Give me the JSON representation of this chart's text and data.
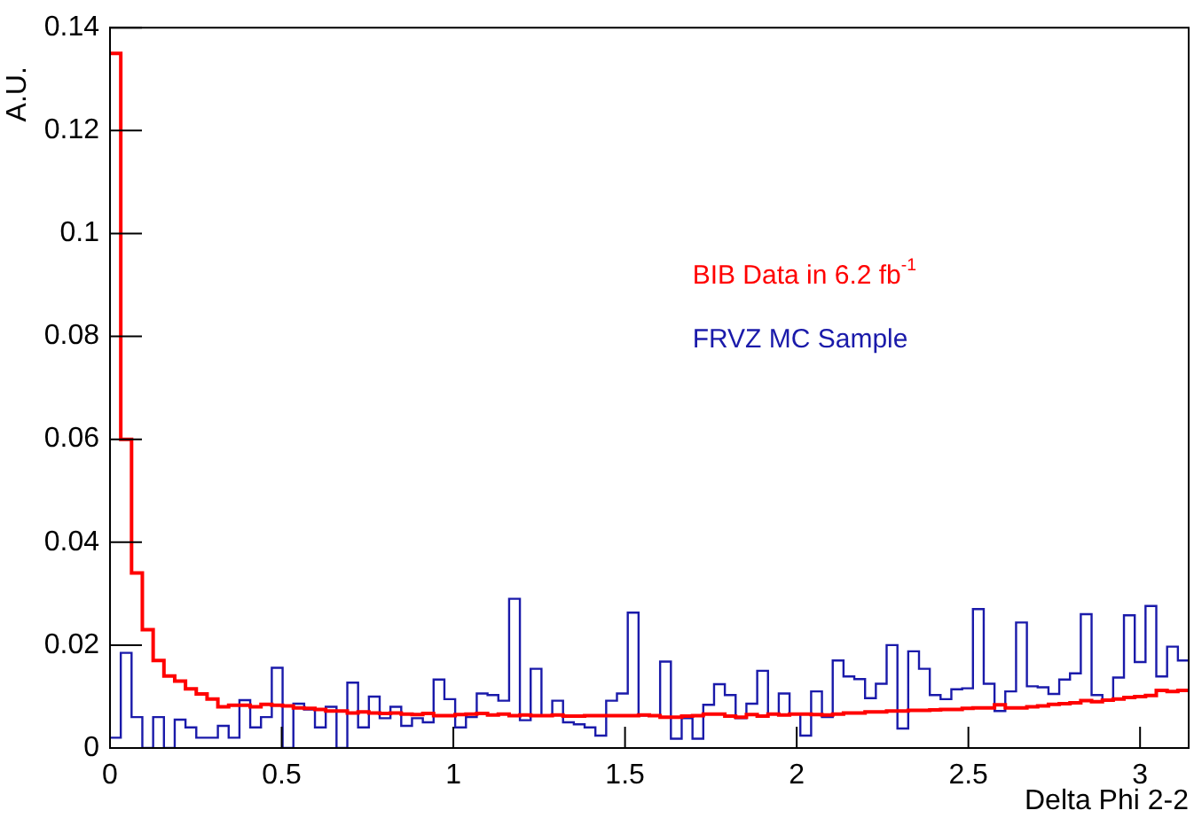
{
  "chart_data": {
    "type": "histogram",
    "xlabel": "Delta Phi 2-2",
    "ylabel": "A.U.",
    "bins": [
      0,
      0.0314,
      0.0628,
      0.0942,
      0.1257,
      0.1571,
      0.1885,
      0.2199,
      0.2513,
      0.2827,
      0.3142,
      0.3456,
      0.377,
      0.4084,
      0.4398,
      0.4712,
      0.5027,
      0.5341,
      0.5655,
      0.5969,
      0.6283,
      0.6597,
      0.6912,
      0.7226,
      0.754,
      0.7854,
      0.8168,
      0.8482,
      0.8796,
      0.9111,
      0.9425,
      0.9739,
      1.0053,
      1.0367,
      1.0681,
      1.0996,
      1.131,
      1.1624,
      1.1938,
      1.2252,
      1.2566,
      1.2881,
      1.3195,
      1.3509,
      1.3823,
      1.4137,
      1.4451,
      1.4765,
      1.508,
      1.5394,
      1.5708,
      1.6022,
      1.6336,
      1.665,
      1.6965,
      1.7279,
      1.7593,
      1.7907,
      1.8221,
      1.8535,
      1.885,
      1.9164,
      1.9478,
      1.9792,
      2.0106,
      2.042,
      2.0735,
      2.1049,
      2.1363,
      2.1677,
      2.1991,
      2.2305,
      2.2619,
      2.2934,
      2.3248,
      2.3562,
      2.3876,
      2.419,
      2.4504,
      2.4819,
      2.5133,
      2.5447,
      2.5761,
      2.6075,
      2.6389,
      2.6704,
      2.7018,
      2.7332,
      2.7646,
      2.796,
      2.8274,
      2.8588,
      2.8903,
      2.9217,
      2.9531,
      2.9845,
      3.0159,
      3.0473,
      3.0788,
      3.1102,
      3.1416
    ],
    "series": [
      {
        "name": "BIB Data in 6.2 fb$^{-1}$",
        "color": "#ff0000",
        "values": [
          0.135,
          0.06,
          0.034,
          0.023,
          0.017,
          0.014,
          0.013,
          0.0115,
          0.0105,
          0.0095,
          0.008,
          0.0083,
          0.0083,
          0.008,
          0.0085,
          0.0083,
          0.0082,
          0.0078,
          0.0077,
          0.0075,
          0.0072,
          0.0072,
          0.0068,
          0.007,
          0.0068,
          0.0067,
          0.0068,
          0.0066,
          0.0065,
          0.0067,
          0.0063,
          0.0063,
          0.0065,
          0.0066,
          0.0067,
          0.0064,
          0.0066,
          0.0063,
          0.0064,
          0.0063,
          0.0063,
          0.0064,
          0.0062,
          0.0062,
          0.0063,
          0.0063,
          0.0063,
          0.0063,
          0.0063,
          0.0064,
          0.0063,
          0.006,
          0.006,
          0.0062,
          0.0063,
          0.0066,
          0.0066,
          0.0062,
          0.006,
          0.0065,
          0.0062,
          0.0066,
          0.0064,
          0.0066,
          0.0066,
          0.0065,
          0.0064,
          0.0066,
          0.0068,
          0.0068,
          0.007,
          0.007,
          0.0072,
          0.0072,
          0.0073,
          0.0073,
          0.0074,
          0.0075,
          0.0075,
          0.0077,
          0.0078,
          0.0078,
          0.0084,
          0.0078,
          0.0078,
          0.008,
          0.0082,
          0.0085,
          0.0086,
          0.0088,
          0.0092,
          0.009,
          0.0093,
          0.0095,
          0.0098,
          0.01,
          0.0102,
          0.0112,
          0.011,
          0.0112
        ]
      },
      {
        "name": "FRVZ MC Sample",
        "color": "#1a1aaa",
        "values": [
          0.002,
          0.0185,
          0.006,
          0,
          0.006,
          0,
          0.0055,
          0.004,
          0.002,
          0.002,
          0.0043,
          0.002,
          0.0093,
          0.004,
          0.006,
          0.0156,
          0,
          0.0086,
          0.0075,
          0.004,
          0.008,
          0,
          0.0127,
          0.004,
          0.01,
          0.0058,
          0.008,
          0.0043,
          0.0058,
          0.005,
          0.0133,
          0.0095,
          0.004,
          0.006,
          0.0106,
          0.0103,
          0.0092,
          0.029,
          0.0054,
          0.0154,
          0.0063,
          0.0092,
          0.005,
          0.0046,
          0.004,
          0.0024,
          0.0092,
          0.0106,
          0.0263,
          0.0063,
          0.0063,
          0.0168,
          0.0018,
          0.0058,
          0.0018,
          0.0084,
          0.0124,
          0.0103,
          0.0058,
          0.0086,
          0.015,
          0.0066,
          0.0106,
          0.0066,
          0.0024,
          0.011,
          0.006,
          0.017,
          0.0139,
          0.0134,
          0.0097,
          0.0125,
          0.02,
          0.0038,
          0.0188,
          0.0154,
          0.0103,
          0.0095,
          0.0114,
          0.0116,
          0.027,
          0.0125,
          0.0072,
          0.011,
          0.0244,
          0.012,
          0.0118,
          0.0105,
          0.0133,
          0.0145,
          0.026,
          0.0103,
          0.0092,
          0.0137,
          0.0258,
          0.0167,
          0.0276,
          0.0139,
          0.0197,
          0.017
        ]
      }
    ],
    "xlim": [
      0,
      3.1416
    ],
    "xticks": [
      0,
      0.5,
      1,
      1.5,
      2,
      2.5,
      3
    ],
    "ylim": [
      0,
      0.14
    ],
    "yticks": [
      0,
      0.02,
      0.04,
      0.06,
      0.08,
      0.1,
      0.12,
      0.14
    ],
    "legend": "top right"
  }
}
